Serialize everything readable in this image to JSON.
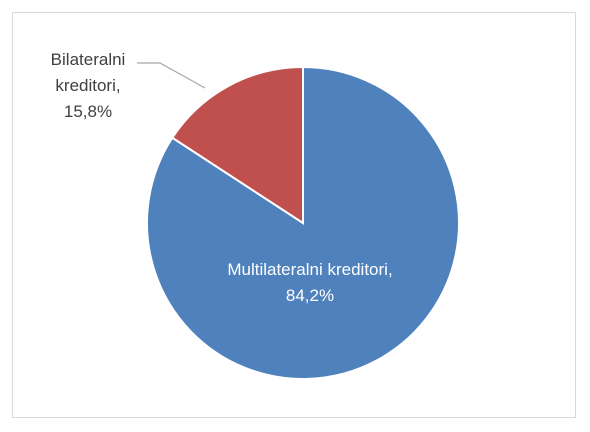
{
  "chart_data": {
    "type": "pie",
    "categories": [
      "Multilateralni kreditori,",
      "Bilateralni kreditori,"
    ],
    "values": [
      84.2,
      15.8
    ],
    "value_labels": [
      "84,2%",
      "15,8%"
    ],
    "colors": [
      "#4f81bd",
      "#c0504d"
    ]
  }
}
